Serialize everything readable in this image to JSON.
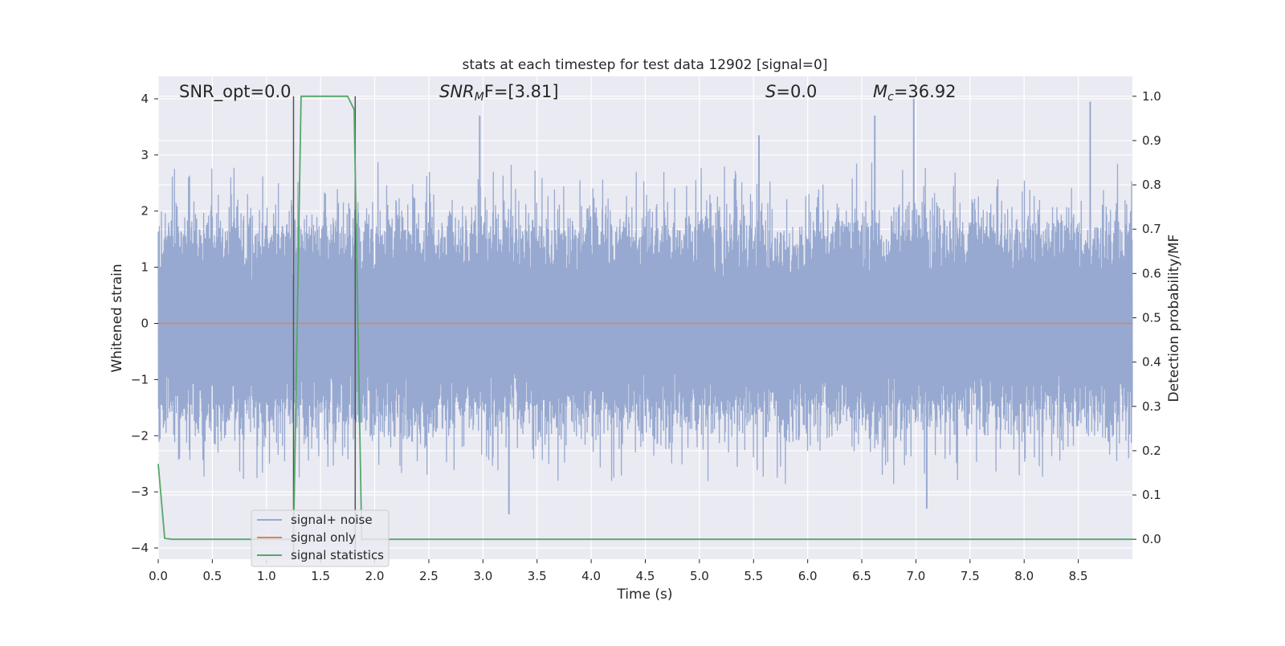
{
  "chart_data": {
    "type": "line",
    "title": "stats at each timestep for test data 12902 [signal=0]",
    "xlabel": "Time (s)",
    "ylabel_left": "Whitened strain",
    "ylabel_right": "Detection probability/MF",
    "xlim": [
      0.0,
      9.0
    ],
    "ylim_left": [
      -4.2,
      4.4
    ],
    "ylim_right": [
      -0.045,
      1.045
    ],
    "x_ticks": [
      "0.0",
      "0.5",
      "1.0",
      "1.5",
      "2.0",
      "2.5",
      "3.0",
      "3.5",
      "4.0",
      "4.5",
      "5.0",
      "5.5",
      "6.0",
      "6.5",
      "7.0",
      "7.5",
      "8.0",
      "8.5"
    ],
    "y_left_ticks": [
      "4",
      "3",
      "2",
      "1",
      "0",
      "−1",
      "−2",
      "−3",
      "−4"
    ],
    "y_right_ticks": [
      "1.0",
      "0.9",
      "0.8",
      "0.7",
      "0.6",
      "0.5",
      "0.4",
      "0.3",
      "0.2",
      "0.1",
      "0.0"
    ],
    "grid": true,
    "legend_position": "lower-left",
    "annotations": {
      "snr_opt": "SNR_opt=0.0",
      "snr_mf_main": "SNR",
      "snr_mf_sub": "M",
      "snr_mf_tail": "F=[3.81]",
      "s_main": "S",
      "s_tail": "=0.0",
      "mc_main": "M",
      "mc_sub": "c",
      "mc_tail": "=36.92"
    },
    "vertical_markers_x": [
      1.25,
      1.82
    ],
    "series": [
      {
        "name": "signal+ noise",
        "color": "#97a9d0",
        "axis": "left",
        "description_note": "whitened strain noise, dense, amplitude roughly ±2.5 with peaks near ±4",
        "peak_highlights": [
          {
            "x": 2.97,
            "y": 3.7
          },
          {
            "x": 3.24,
            "y": -3.4
          },
          {
            "x": 5.55,
            "y": 3.35
          },
          {
            "x": 6.62,
            "y": 3.7
          },
          {
            "x": 6.98,
            "y": 4.0
          },
          {
            "x": 7.1,
            "y": -3.3
          },
          {
            "x": 8.61,
            "y": 3.95
          }
        ]
      },
      {
        "name": "signal only",
        "color": "#dd8452",
        "axis": "left",
        "x": [
          0.0,
          9.0
        ],
        "y": [
          0.0,
          0.0
        ]
      },
      {
        "name": "signal statistics",
        "color": "#55a868",
        "axis": "right",
        "x": [
          0.0,
          0.06,
          0.13,
          1.25,
          1.32,
          1.75,
          1.81,
          1.88,
          1.95,
          9.0
        ],
        "y": [
          0.17,
          0.002,
          0.0,
          0.0,
          1.0,
          1.0,
          0.97,
          0.0,
          0.0,
          0.0
        ]
      }
    ]
  }
}
